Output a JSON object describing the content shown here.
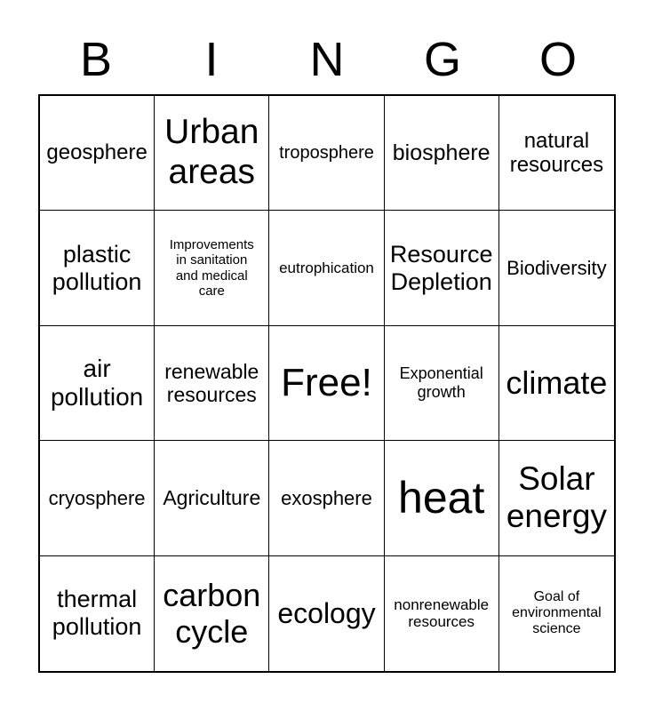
{
  "header": {
    "letters": [
      "B",
      "I",
      "N",
      "G",
      "O"
    ]
  },
  "card": {
    "free_space_label": "Free!",
    "cells": [
      {
        "text": "geosphere"
      },
      {
        "text": "Urban areas"
      },
      {
        "text": "troposphere"
      },
      {
        "text": "biosphere"
      },
      {
        "text": "natural resources"
      },
      {
        "text": "plastic pollution"
      },
      {
        "text": "Improvements in sanitation and medical care"
      },
      {
        "text": "eutrophication"
      },
      {
        "text": "Resource Depletion"
      },
      {
        "text": "Biodiversity"
      },
      {
        "text": "air pollution"
      },
      {
        "text": "renewable resources"
      },
      {
        "text": "Free!"
      },
      {
        "text": "Exponential growth"
      },
      {
        "text": "climate"
      },
      {
        "text": "cryosphere"
      },
      {
        "text": "Agriculture"
      },
      {
        "text": "exosphere"
      },
      {
        "text": "heat"
      },
      {
        "text": "Solar energy"
      },
      {
        "text": "thermal pollution"
      },
      {
        "text": "carbon cycle"
      },
      {
        "text": "ecology"
      },
      {
        "text": "nonrenewable resources"
      },
      {
        "text": "Goal of environmental science"
      }
    ]
  },
  "colors": {
    "text": "#000000",
    "border": "#000000",
    "background": "#ffffff"
  }
}
